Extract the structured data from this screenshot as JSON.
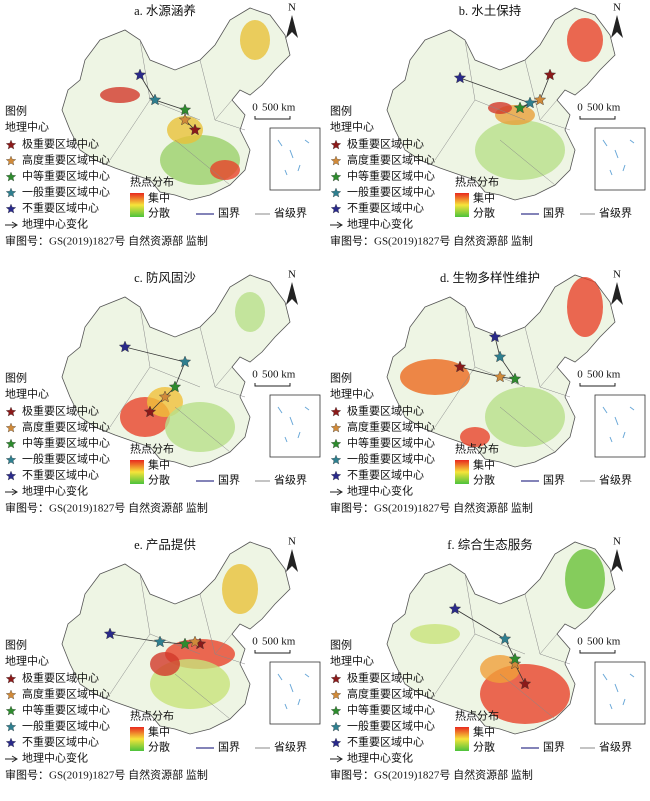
{
  "panels": [
    {
      "title": "a. 水源涵养"
    },
    {
      "title": "b. 水土保持"
    },
    {
      "title": "c. 防风固沙"
    },
    {
      "title": "d. 生物多样性维护"
    },
    {
      "title": "e. 产品提供"
    },
    {
      "title": "f. 综合生态服务"
    }
  ],
  "north": "N",
  "scale": {
    "zero": "0",
    "length": "500 km"
  },
  "legend": {
    "title": "图例",
    "center_title": "地理中心",
    "items": [
      "极重要区域中心",
      "高度重要区域中心",
      "中等重要区域中心",
      "一般重要区域中心",
      "不重要区域中心"
    ],
    "change": "地理中心变化",
    "hotspot_title": "热点分布",
    "high": "集中",
    "low": "分散",
    "national_border": "国界",
    "provincial_border": "省级界"
  },
  "approval": "审图号：GS(2019)1827号 自然资源部 监制"
}
